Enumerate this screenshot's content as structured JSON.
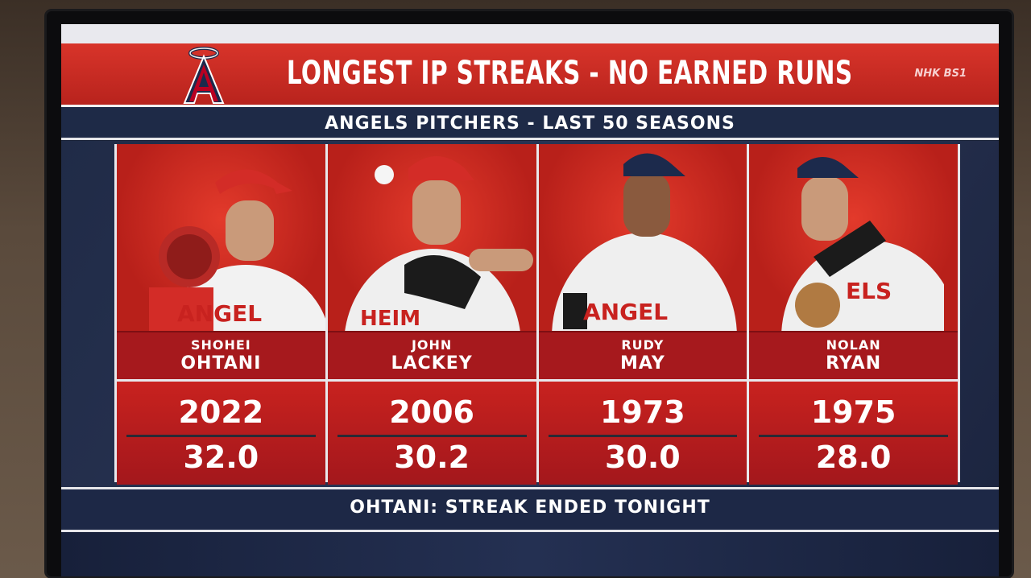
{
  "header": {
    "title": "LONGEST IP STREAKS - NO EARNED RUNS",
    "broadcaster": "NHK BS1",
    "logo_letter": "A"
  },
  "subheader": "ANGELS PITCHERS - LAST 50 SEASONS",
  "players": [
    {
      "first": "SHOHEI",
      "last": "OHTANI",
      "year": "2022",
      "ip": "32.0"
    },
    {
      "first": "JOHN",
      "last": "LACKEY",
      "year": "2006",
      "ip": "30.2"
    },
    {
      "first": "RUDY",
      "last": "MAY",
      "year": "1973",
      "ip": "30.0"
    },
    {
      "first": "NOLAN",
      "last": "RYAN",
      "year": "1975",
      "ip": "28.0"
    }
  ],
  "footer": "OHTANI: STREAK ENDED TONIGHT",
  "colors": {
    "red": "#c8221f",
    "navy": "#1e2a47"
  }
}
